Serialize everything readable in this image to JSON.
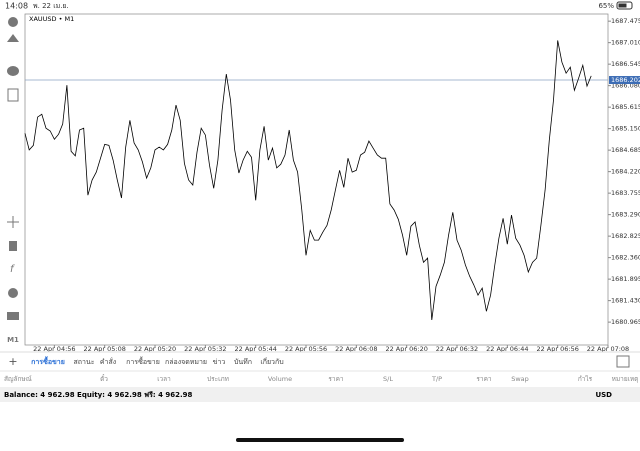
{
  "status_bar": {
    "time": "14:08",
    "date": "พ. 22 เม.ย.",
    "battery": "65%"
  },
  "chart_data": {
    "type": "line",
    "symbol": "XAUUSD • M1",
    "timeframe": "M1",
    "x": [
      289,
      290,
      291,
      292,
      293,
      294,
      295,
      296,
      297,
      298,
      299,
      300,
      301,
      302,
      303,
      304,
      305,
      306,
      307,
      308,
      309,
      310,
      311,
      312,
      313,
      314,
      315,
      316,
      317,
      318,
      319,
      320,
      321,
      322,
      323,
      324,
      325,
      326,
      327,
      328,
      329,
      330,
      331,
      332,
      333,
      334,
      335,
      336,
      337,
      338,
      339,
      340,
      341,
      342,
      343,
      344,
      345,
      346,
      347,
      348,
      349,
      350,
      351,
      352,
      353,
      354,
      355,
      356,
      357,
      358,
      359,
      360,
      361,
      362,
      363,
      364,
      365,
      366,
      367,
      368,
      369,
      370,
      371,
      372,
      373,
      374,
      375,
      376,
      377,
      378,
      379,
      380,
      381,
      382,
      383,
      384,
      385,
      386,
      387,
      388,
      389,
      390,
      391,
      392,
      393,
      394,
      395,
      396,
      397,
      398,
      399,
      400,
      401,
      402,
      403,
      404,
      405,
      406,
      407,
      408,
      409,
      410,
      411,
      412,
      413,
      414,
      415,
      416,
      417,
      418,
      419,
      420,
      421,
      422,
      423,
      424
    ],
    "series": [
      {
        "name": "XAUUSD",
        "color": "#000000",
        "values": [
          1685.05,
          1684.69,
          1684.79,
          1685.4,
          1685.46,
          1685.16,
          1685.1,
          1684.92,
          1685.03,
          1685.25,
          1686.09,
          1684.66,
          1684.56,
          1685.12,
          1685.16,
          1683.71,
          1684.04,
          1684.21,
          1684.51,
          1684.81,
          1684.79,
          1684.47,
          1684.04,
          1683.65,
          1684.75,
          1685.33,
          1684.84,
          1684.69,
          1684.43,
          1684.08,
          1684.3,
          1684.69,
          1684.75,
          1684.69,
          1684.81,
          1685.12,
          1685.66,
          1685.33,
          1684.4,
          1684.04,
          1683.93,
          1684.64,
          1685.16,
          1685.01,
          1684.36,
          1683.86,
          1684.47,
          1685.55,
          1686.33,
          1685.77,
          1684.69,
          1684.19,
          1684.47,
          1684.66,
          1684.53,
          1683.6,
          1684.69,
          1685.2,
          1684.47,
          1684.73,
          1684.3,
          1684.38,
          1684.58,
          1685.12,
          1684.47,
          1684.21,
          1683.39,
          1682.41,
          1682.95,
          1682.74,
          1682.74,
          1682.91,
          1683.06,
          1683.39,
          1683.82,
          1684.25,
          1683.88,
          1684.51,
          1684.21,
          1684.25,
          1684.58,
          1684.64,
          1684.88,
          1684.73,
          1684.58,
          1684.51,
          1684.51,
          1683.52,
          1683.39,
          1683.19,
          1682.85,
          1682.41,
          1683.04,
          1683.13,
          1682.63,
          1682.26,
          1682.35,
          1681.01,
          1681.74,
          1681.98,
          1682.26,
          1682.85,
          1683.34,
          1682.74,
          1682.52,
          1682.2,
          1681.96,
          1681.77,
          1681.55,
          1681.7,
          1681.2,
          1681.55,
          1682.2,
          1682.78,
          1683.21,
          1682.65,
          1683.28,
          1682.78,
          1682.63,
          1682.41,
          1682.05,
          1682.26,
          1682.35,
          1683.06,
          1683.82,
          1684.9,
          1685.77,
          1687.06,
          1686.59,
          1686.35,
          1686.48,
          1685.98,
          1686.24,
          1686.52,
          1686.07,
          1686.29
        ]
      }
    ],
    "current_price": 1686.202,
    "xlim": [
      289,
      428
    ],
    "xticks": [
      {
        "value": 296,
        "label": "22 Apr 04:56"
      },
      {
        "value": 308,
        "label": "22 Apr 05:08"
      },
      {
        "value": 320,
        "label": "22 Apr 05:20"
      },
      {
        "value": 332,
        "label": "22 Apr 05:32"
      },
      {
        "value": 344,
        "label": "22 Apr 05:44"
      },
      {
        "value": 356,
        "label": "22 Apr 05:56"
      },
      {
        "value": 368,
        "label": "22 Apr 06:08"
      },
      {
        "value": 380,
        "label": "22 Apr 06:20"
      },
      {
        "value": 392,
        "label": "22 Apr 06:32"
      },
      {
        "value": 404,
        "label": "22 Apr 06:44"
      },
      {
        "value": 416,
        "label": "22 Apr 06:56"
      },
      {
        "value": 428,
        "label": "22 Apr 07:08"
      }
    ],
    "ylim": [
      1680.47,
      1687.63
    ],
    "yticks": [
      1680.965,
      {
        "value": 1681.43,
        "label": "1681.430"
      },
      1681.895,
      {
        "value": 1682.36,
        "label": "1682.360"
      },
      1682.825,
      {
        "value": 1683.29,
        "label": "1683.290"
      },
      1683.755,
      {
        "value": 1684.22,
        "label": "1684.220"
      },
      1684.685,
      {
        "value": 1685.15,
        "label": "1685.150"
      },
      1685.615,
      {
        "value": 1686.08,
        "label": "1686.080"
      },
      1686.545,
      {
        "value": 1687.01,
        "label": "1687.010"
      },
      1687.475
    ]
  },
  "tabs": [
    "การซื้อขาย",
    "สถานะ",
    "คำสั่ง",
    "การซื้อขาย",
    "กล่องจดหมาย",
    "ข่าว",
    "บันทึก",
    "เกี่ยวกับ"
  ],
  "columns": [
    "สัญลักษณ์",
    "ตั๋ว",
    "เวลา",
    "ประเภท",
    "Volume",
    "ราคา",
    "S/L",
    "T/P",
    "ราคา",
    "Swap",
    "กำไร",
    "หมายเหตุ"
  ],
  "balance_line": "Balance: 4 962.98 Equity: 4 962.98 ฟรี: 4 962.98",
  "currency": "USD"
}
